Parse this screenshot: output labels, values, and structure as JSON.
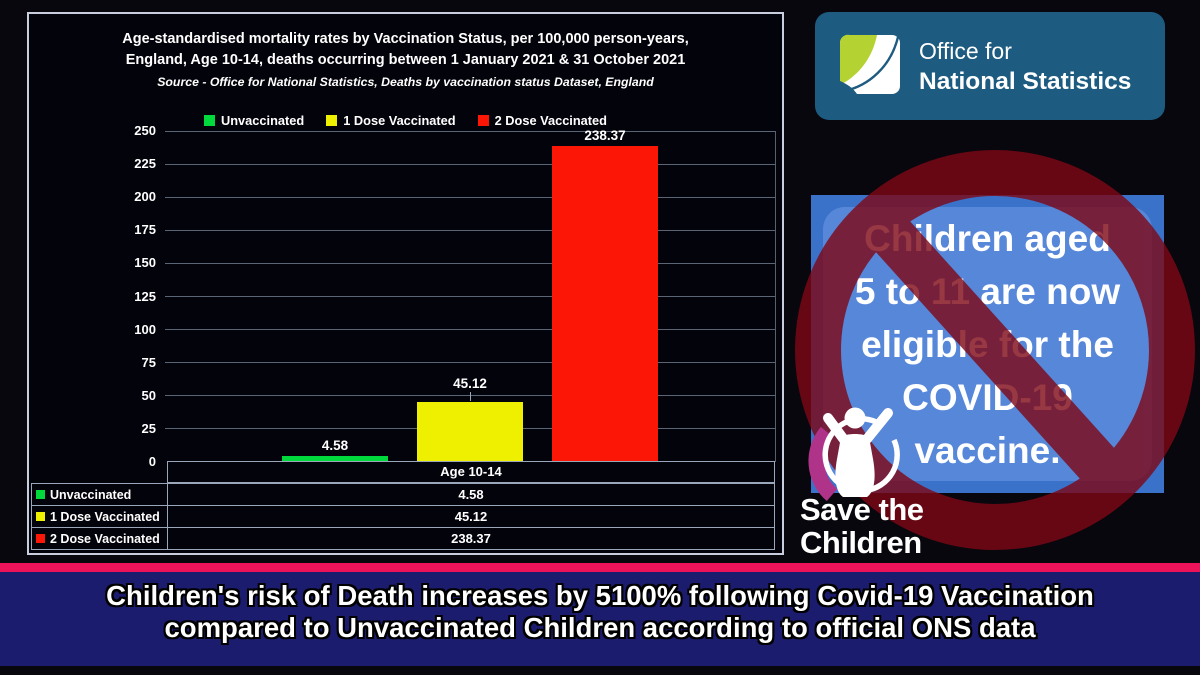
{
  "chart_data": {
    "type": "bar",
    "title_lines": [
      "Age-standardised mortality rates by Vaccination Status, per 100,000 person-years,",
      "England, Age 10-14, deaths occurring between 1 January 2021 & 31 October 2021"
    ],
    "source": "Source - Office for National Statistics, Deaths by vaccination status Dataset, England",
    "categories": [
      "Age 10-14"
    ],
    "series": [
      {
        "name": "Unvaccinated",
        "values": [
          4.58
        ],
        "color": "#00d93c"
      },
      {
        "name": "1 Dose Vaccinated",
        "values": [
          45.12
        ],
        "color": "#eef000"
      },
      {
        "name": "2 Dose Vaccinated",
        "values": [
          238.37
        ],
        "color": "#fc1605"
      }
    ],
    "ylim": [
      0,
      250
    ],
    "y_ticks": [
      0,
      25,
      50,
      75,
      100,
      125,
      150,
      175,
      200,
      225,
      250
    ],
    "grid": true,
    "legend_position": "top",
    "show_data_table": true
  },
  "ons_logo": {
    "line1": "Office for",
    "line2": "National Statistics"
  },
  "vaccine_card": {
    "lines": [
      "Children aged",
      "5 to 11 are now",
      "eligible for the",
      "COVID-19",
      "vaccine."
    ]
  },
  "save_the_children": {
    "line1": "Save the",
    "line2": "Children"
  },
  "banner": {
    "line1": "Children's risk of Death increases by 5100% following Covid-19 Vaccination",
    "line2": "compared to Unvaccinated Children according to official ONS data"
  },
  "colors": {
    "accent_stripe": "#ec135a",
    "banner_bg": "#1c1c6e",
    "ons_bg": "#1d5b80",
    "card_frame": "#3b72c9",
    "card_inner": "#5787d9",
    "prohibition_red": "#7e0715",
    "stc_magenta": "#b0338a",
    "grid": "#5a6676"
  }
}
